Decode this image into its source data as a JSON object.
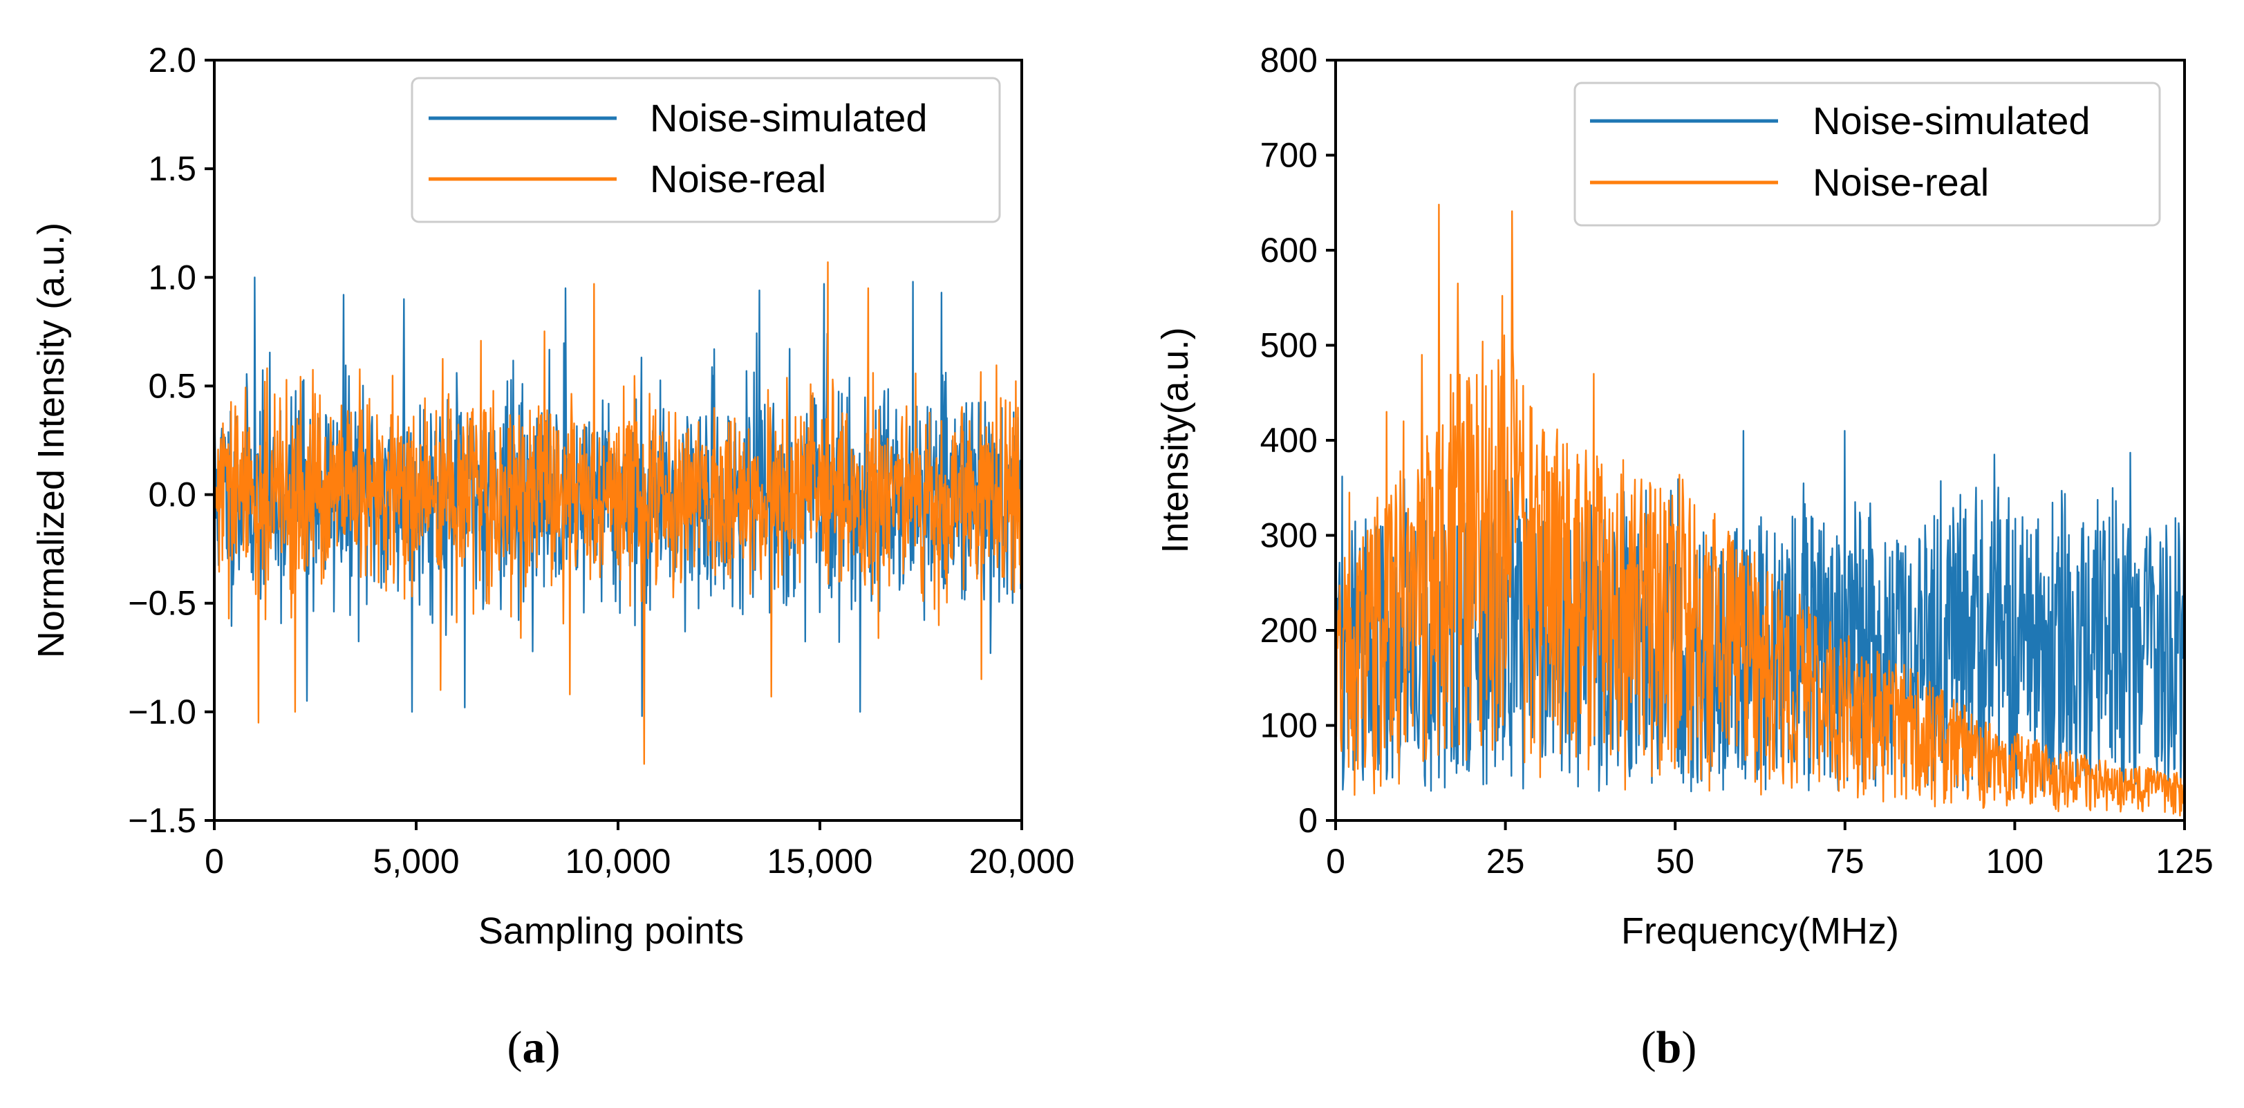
{
  "colors": {
    "simulated": "#1f77b4",
    "real": "#ff7f0e"
  },
  "chart_data": [
    {
      "type": "line",
      "panel": "a",
      "panel_label": {
        "open": "(",
        "letter": "a",
        "close": ")"
      },
      "xlabel": "Sampling points",
      "ylabel": "Normalized Intensity (a.u.)",
      "xlim": [
        0,
        20000
      ],
      "ylim": [
        -1.5,
        2.0
      ],
      "xticks": [
        0,
        5000,
        10000,
        15000,
        20000
      ],
      "xtick_labels": [
        "0",
        "5,000",
        "10,000",
        "15,000",
        "20,000"
      ],
      "yticks": [
        -1.5,
        -1.0,
        -0.5,
        0.0,
        0.5,
        1.0,
        1.5,
        2.0
      ],
      "ytick_labels": [
        "−1.5",
        "−1.0",
        "−0.5",
        "0.0",
        "0.5",
        "1.0",
        "1.5",
        "2.0"
      ],
      "grid": false,
      "legend_position": "top-right",
      "series": [
        {
          "name": "Noise-simulated",
          "color": "#1f77b4",
          "description_values": {
            "typical_band": [
              -0.6,
              0.65
            ],
            "max": 1.0,
            "min": -1.02
          },
          "peaks": [
            [
              1000,
              1.0
            ],
            [
              3200,
              0.92
            ],
            [
              4700,
              0.9
            ],
            [
              8700,
              0.95
            ],
            [
              13500,
              0.94
            ],
            [
              15100,
              0.97
            ],
            [
              17300,
              0.98
            ],
            [
              10600,
              -1.02
            ],
            [
              16000,
              -1.0
            ],
            [
              4900,
              -1.0
            ],
            [
              6200,
              -0.98
            ],
            [
              2300,
              -0.95
            ]
          ]
        },
        {
          "name": "Noise-real",
          "color": "#ff7f0e",
          "description_values": {
            "typical_band": [
              -0.55,
              0.6
            ],
            "max": 1.07,
            "min": -1.24
          },
          "peaks": [
            [
              15200,
              1.07
            ],
            [
              9400,
              0.97
            ],
            [
              16200,
              0.95
            ],
            [
              1100,
              -1.05
            ],
            [
              2000,
              -1.0
            ],
            [
              10650,
              -1.24
            ],
            [
              13800,
              -0.93
            ],
            [
              5600,
              -0.9
            ],
            [
              8800,
              -0.92
            ],
            [
              19000,
              -0.85
            ]
          ]
        }
      ]
    },
    {
      "type": "line",
      "panel": "b",
      "panel_label": {
        "open": "(",
        "letter": "b",
        "close": ")"
      },
      "xlabel": "Frequency(MHz)",
      "ylabel": "Intensity(a.u.)",
      "xlim": [
        0,
        125
      ],
      "ylim": [
        0,
        800
      ],
      "xticks": [
        0,
        25,
        50,
        75,
        100,
        125
      ],
      "xtick_labels": [
        "0",
        "25",
        "50",
        "75",
        "100",
        "125"
      ],
      "yticks": [
        0,
        100,
        200,
        300,
        400,
        500,
        600,
        700,
        800
      ],
      "ytick_labels": [
        "0",
        "100",
        "200",
        "300",
        "400",
        "500",
        "600",
        "700",
        "800"
      ],
      "grid": false,
      "legend_position": "top-right",
      "series": [
        {
          "name": "Noise-simulated",
          "color": "#1f77b4",
          "description_values": {
            "flat_level_upper": 320,
            "flat_level_lower": 20
          },
          "peaks": [
            [
              1,
              362
            ],
            [
              15,
              390
            ],
            [
              26,
              360
            ],
            [
              60,
              410
            ],
            [
              75,
              410
            ],
            [
              97,
              385
            ],
            [
              117,
              387
            ],
            [
              125,
              310
            ]
          ]
        },
        {
          "name": "Noise-real",
          "color": "#ff7f0e",
          "envelope": [
            [
              0,
              280
            ],
            [
              5,
              330
            ],
            [
              10,
              380
            ],
            [
              15,
              450
            ],
            [
              20,
              500
            ],
            [
              25,
              520
            ],
            [
              30,
              430
            ],
            [
              35,
              400
            ],
            [
              40,
              390
            ],
            [
              50,
              370
            ],
            [
              55,
              330
            ],
            [
              65,
              260
            ],
            [
              75,
              200
            ],
            [
              85,
              160
            ],
            [
              95,
              110
            ],
            [
              105,
              80
            ],
            [
              115,
              60
            ],
            [
              125,
              50
            ]
          ],
          "peaks": [
            [
              15.2,
              648
            ],
            [
              26,
              641
            ],
            [
              18,
              565
            ],
            [
              24.5,
              552
            ],
            [
              12.7,
              490
            ],
            [
              38,
              470
            ],
            [
              10,
              420
            ],
            [
              7.5,
              430
            ],
            [
              2,
              345
            ]
          ]
        }
      ]
    }
  ],
  "legend": {
    "simulated_label": "Noise-simulated",
    "real_label": "Noise-real"
  }
}
